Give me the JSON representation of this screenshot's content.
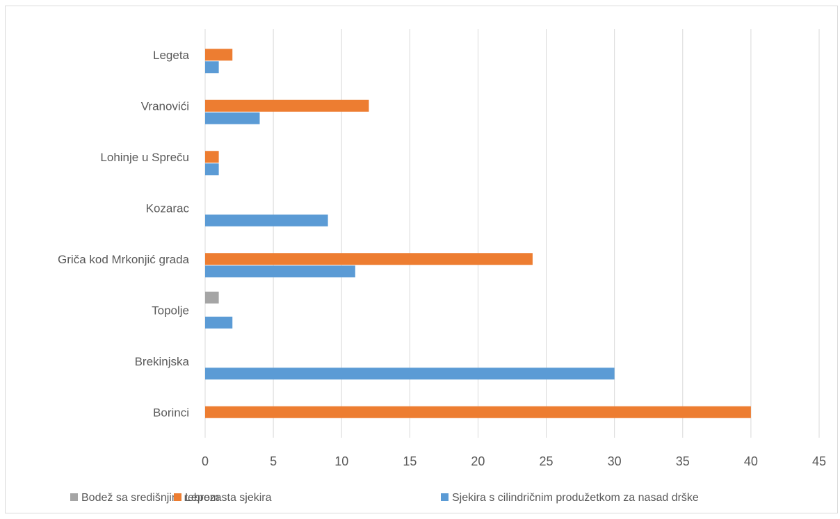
{
  "chart_data": {
    "type": "bar",
    "orientation": "horizontal",
    "categories": [
      "Borinci",
      "Brekinjska",
      "Topolje",
      "Griča kod Mrkonjić grada",
      "Kozarac",
      "Lohinje u Spreču",
      "Vranovići",
      "Legeta"
    ],
    "series": [
      {
        "name": "Bodež sa središnjim rebrom",
        "color": "#a5a5a5",
        "values": [
          null,
          null,
          1,
          null,
          null,
          null,
          null,
          null
        ]
      },
      {
        "name": "Lepezasta sjekira",
        "color": "#ed7d31",
        "values": [
          40,
          null,
          null,
          24,
          null,
          1,
          12,
          2
        ]
      },
      {
        "name": "Sjekira s cilindričnim produžetkom za nasad drške",
        "color": "#5b9bd5",
        "values": [
          null,
          30,
          2,
          11,
          9,
          1,
          4,
          1
        ]
      }
    ],
    "xlim": [
      0,
      45
    ],
    "xticks": [
      "0",
      "5",
      "10",
      "15",
      "20",
      "25",
      "30",
      "35",
      "40",
      "45"
    ],
    "grid": "vertical",
    "legend": "bottom",
    "title": "",
    "xlabel": "",
    "ylabel": ""
  }
}
